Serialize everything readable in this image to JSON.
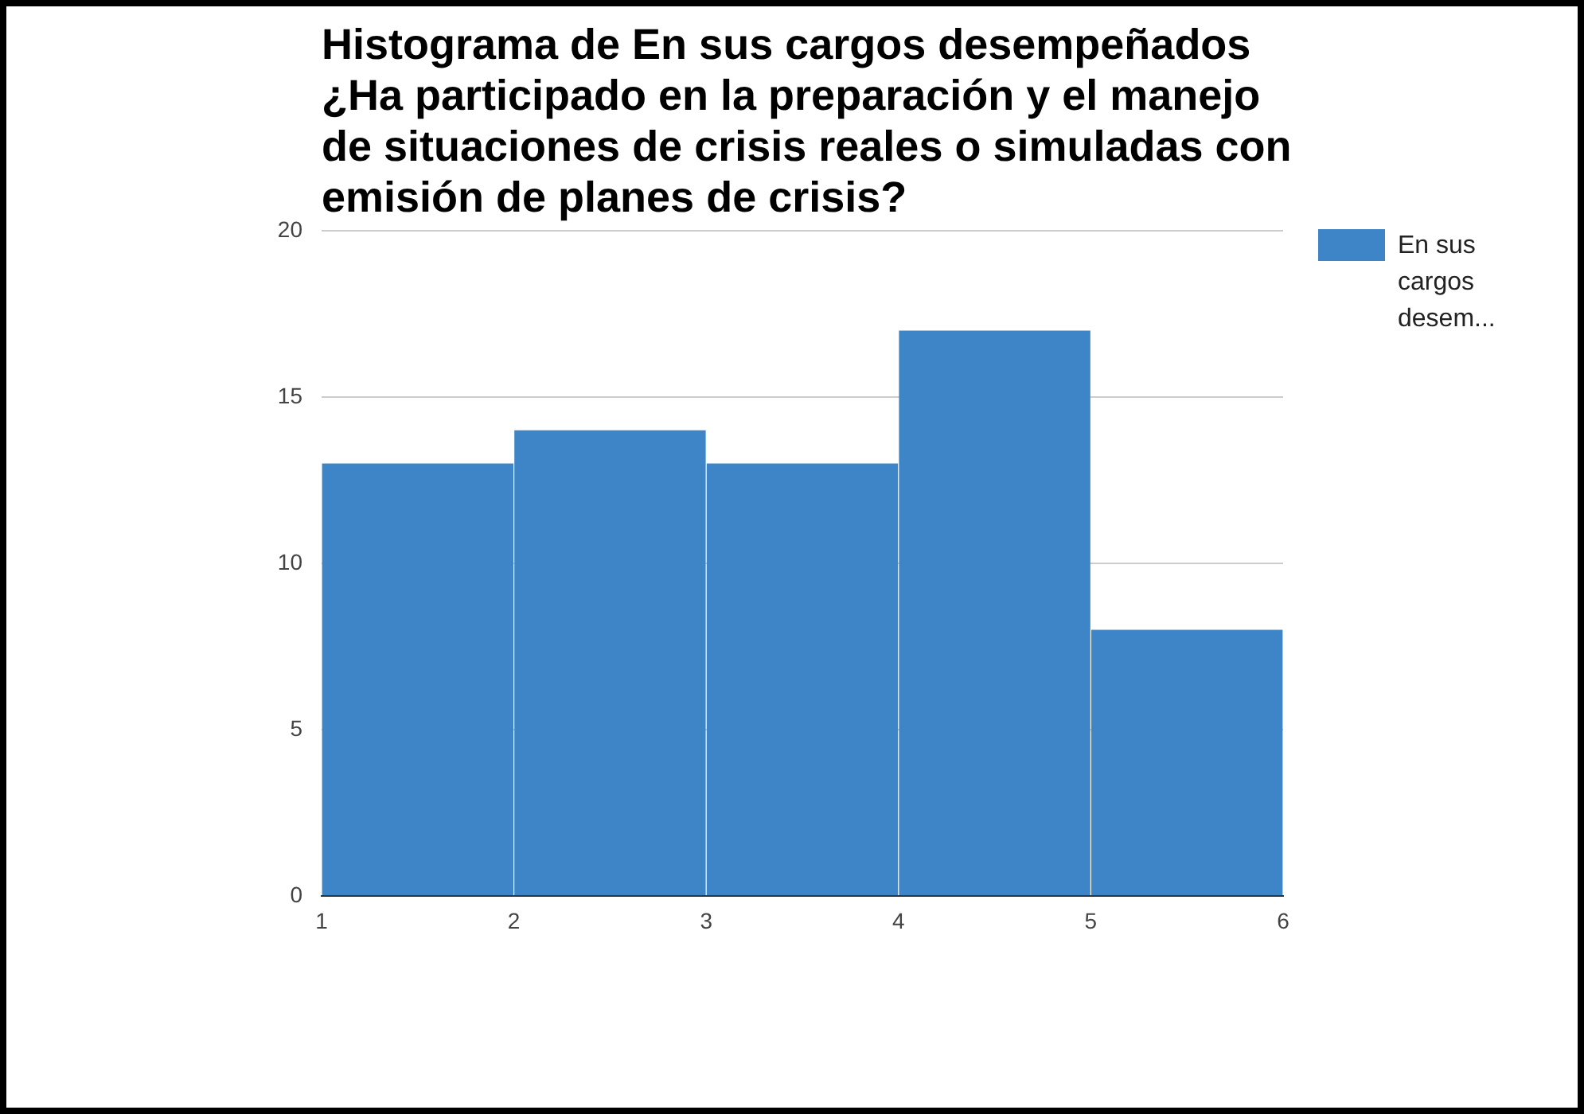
{
  "chart_data": {
    "type": "histogram",
    "title": "Histograma de En sus cargos desempeñados ¿Ha participado en la preparación y el manejo de situaciones de crisis reales o simuladas con emisión de planes de crisis?",
    "bins": [
      1,
      2,
      3,
      4,
      5,
      6
    ],
    "series": [
      {
        "name": "En sus cargos desem...",
        "color": "#3d85c6",
        "values": [
          13,
          14,
          13,
          17,
          8
        ]
      }
    ],
    "xlim": [
      1,
      6
    ],
    "xticks": [
      1,
      2,
      3,
      4,
      5,
      6
    ],
    "ylim": [
      0,
      20
    ],
    "yticks": [
      0,
      5,
      10,
      15,
      20
    ],
    "grid": "y",
    "legend": "right"
  }
}
